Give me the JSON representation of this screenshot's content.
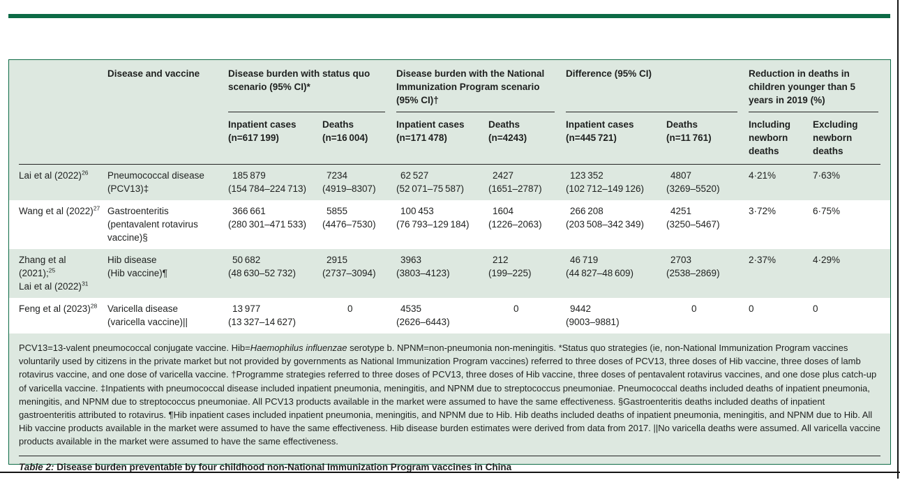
{
  "colors": {
    "accent_green": "#0d6b46",
    "panel_background": "#dde8e0",
    "row_stripe": "#ffffff",
    "text": "#1e201f",
    "rule": "#232323"
  },
  "table": {
    "header": {
      "disease_col": "Disease and vaccine",
      "groups": [
        {
          "label": "Disease burden with status quo scenario (95% CI)*"
        },
        {
          "label": "Disease burden with the National Immunization Program scenario (95% CI)†"
        },
        {
          "label": "Difference (95% CI)"
        },
        {
          "label": "Reduction in deaths in children younger than 5 years in 2019 (%)"
        }
      ],
      "subheaders": [
        {
          "lines": [
            "Inpatient cases",
            "(n=617 199)"
          ]
        },
        {
          "lines": [
            "Deaths",
            "(n=16 004)"
          ]
        },
        {
          "lines": [
            "Inpatient cases",
            "(n=171 478)"
          ]
        },
        {
          "lines": [
            "Deaths",
            "(n=4243)"
          ]
        },
        {
          "lines": [
            "Inpatient cases",
            "(n=445 721)"
          ]
        },
        {
          "lines": [
            "Deaths",
            "(n=11 761)"
          ]
        },
        {
          "lines": [
            "Including",
            "newborn",
            "deaths"
          ]
        },
        {
          "lines": [
            "Excluding",
            "newborn",
            "deaths"
          ]
        }
      ]
    },
    "rows": [
      {
        "shaded": true,
        "study": [
          [
            {
              "t": "Lai et al (2022)"
            },
            {
              "t": "26",
              "sup": true
            }
          ]
        ],
        "disease": [
          "Pneumococcal disease",
          "(PCV13)‡"
        ],
        "cells": [
          {
            "v": "185 879",
            "ci": "(154 784–224 713)"
          },
          {
            "v": "7234",
            "ci": "(4919–8307)"
          },
          {
            "v": "62 527",
            "ci": "(52 071–75 587)"
          },
          {
            "v": "2427",
            "ci": "(1651–2787)"
          },
          {
            "v": "123 352",
            "ci": "(102 712–149 126)"
          },
          {
            "v": "4807",
            "ci": "(3269–5520)"
          }
        ],
        "including": "4·21%",
        "excluding": "7·63%"
      },
      {
        "shaded": false,
        "study": [
          [
            {
              "t": "Wang et al (2022)"
            },
            {
              "t": "27",
              "sup": true
            }
          ]
        ],
        "disease": [
          "Gastroenteritis",
          "(pentavalent rotavirus",
          "vaccine)§"
        ],
        "cells": [
          {
            "v": "366 661",
            "ci": "(280 301–471 533)"
          },
          {
            "v": "5855",
            "ci": "(4476–7530)"
          },
          {
            "v": "100 453",
            "ci": "(76 793–129 184)"
          },
          {
            "v": "1604",
            "ci": "(1226–2063)"
          },
          {
            "v": "266 208",
            "ci": "(203 508–342 349)"
          },
          {
            "v": "4251",
            "ci": "(3250–5467)"
          }
        ],
        "including": "3·72%",
        "excluding": "6·75%"
      },
      {
        "shaded": true,
        "study": [
          [
            {
              "t": "Zhang et al (2021);"
            },
            {
              "t": "25",
              "sup": true
            }
          ],
          [
            {
              "t": "Lai et al (2022)"
            },
            {
              "t": "31",
              "sup": true
            }
          ]
        ],
        "disease": [
          "Hib disease",
          "(Hib vaccine)¶"
        ],
        "cells": [
          {
            "v": "50 682",
            "ci": "(48 630–52 732)"
          },
          {
            "v": "2915",
            "ci": "(2737–3094)"
          },
          {
            "v": "3963",
            "ci": "(3803–4123)"
          },
          {
            "v": "212",
            "ci": "(199–225)"
          },
          {
            "v": "46 719",
            "ci": "(44 827–48 609)"
          },
          {
            "v": "2703",
            "ci": "(2538–2869)"
          }
        ],
        "including": "2·37%",
        "excluding": "4·29%"
      },
      {
        "shaded": false,
        "study": [
          [
            {
              "t": "Feng et al (2023)"
            },
            {
              "t": "28",
              "sup": true
            }
          ]
        ],
        "disease": [
          "Varicella disease",
          "(varicella vaccine)||"
        ],
        "cells": [
          {
            "v": "13 977",
            "ci": "(13 327–14 627)"
          },
          {
            "v": "0"
          },
          {
            "v": "4535",
            "ci": "(2626–6443)"
          },
          {
            "v": "0"
          },
          {
            "v": "9442",
            "ci": "(9003–9881)"
          },
          {
            "v": "0"
          }
        ],
        "including": "0",
        "excluding": "0"
      }
    ]
  },
  "footnote": {
    "segments": [
      {
        "t": "PCV13=13-valent pneumococcal conjugate vaccine. Hib="
      },
      {
        "t": "Haemophilus influenzae",
        "i": true
      },
      {
        "t": " serotype b. NPNM=non-pneumonia non-meningitis. *Status quo strategies (ie, non-National Immunization Program vaccines voluntarily used by citizens in the private market but not provided by governments as National Immunization Program vaccines) referred to three doses of PCV13, three doses of Hib vaccine, three doses of lamb rotavirus vaccine, and one dose of varicella vaccine. †Programme strategies referred to three doses of PCV13, three doses of Hib vaccine, three doses of pentavalent rotavirus vaccines, and one dose plus catch-up of varicella vaccine. ‡Inpatients with pneumococcal disease included inpatient pneumonia, meningitis, and NPNM due to streptococcus pneumoniae. Pneumococcal deaths included deaths of inpatient pneumonia, meningitis, and NPNM due to streptococcus pneumoniae. All PCV13 products available in the market were assumed to have the same effectiveness. §Gastroenteritis deaths included deaths of inpatient gastroenteritis attributed to rotavirus. ¶Hib inpatient cases included inpatient pneumonia, meningitis, and NPNM due to Hib. Hib deaths included deaths of inpatient pneumonia, meningitis, and NPNM due to Hib. All Hib vaccine products available in the market were assumed to have the same effectiveness. Hib disease burden estimates were derived from data from 2017. ||No varicella deaths were assumed. All varicella vaccine products available in the market were assumed to have the same effectiveness."
      }
    ]
  },
  "caption": {
    "label": "Table 2:",
    "text": " Disease burden preventable by four childhood non-National Immunization Program vaccines in China"
  }
}
